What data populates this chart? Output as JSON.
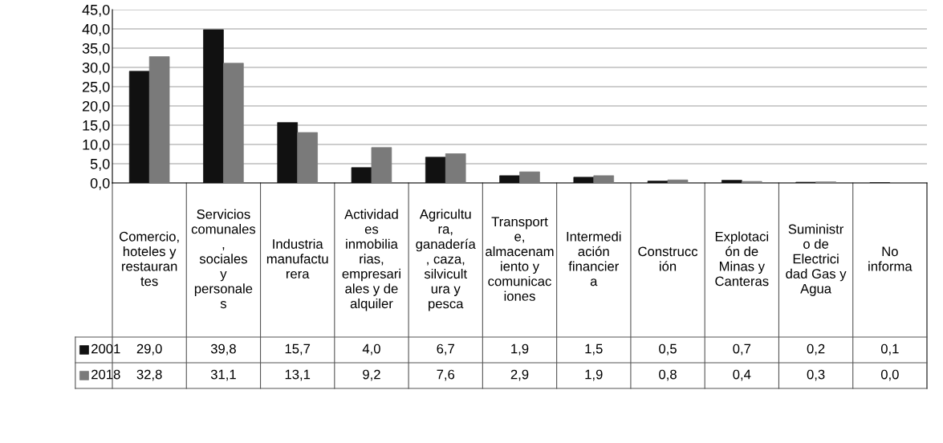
{
  "chart_data": {
    "type": "bar",
    "categories": [
      "Comercio, hoteles y restaurantes",
      "Servicios comunales, sociales y personales",
      "Industria manufacturera",
      "Actividades inmobiliarias, empresariales y de alquiler",
      "Agricultura, ganadería, caza, silvicultura y pesca",
      "Transporte, almacenamiento y comunicaciones",
      "Intermediación financiera",
      "Construcción",
      "Explotación de Minas y Canteras",
      "Suministro de Electricidad Gas y Agua",
      "No informa"
    ],
    "series": [
      {
        "name": "2001",
        "color": "#111111",
        "values": [
          29.0,
          39.8,
          15.7,
          4.0,
          6.7,
          1.9,
          1.5,
          0.5,
          0.7,
          0.2,
          0.1
        ],
        "value_labels": [
          "29,0",
          "39,8",
          "15,7",
          "4,0",
          "6,7",
          "1,9",
          "1,5",
          "0,5",
          "0,7",
          "0,2",
          "0,1"
        ]
      },
      {
        "name": "2018",
        "color": "#7a7a7a",
        "values": [
          32.8,
          31.1,
          13.1,
          9.2,
          7.6,
          2.9,
          1.9,
          0.8,
          0.4,
          0.3,
          0.0
        ],
        "value_labels": [
          "32,8",
          "31,1",
          "13,1",
          "9,2",
          "7,6",
          "2,9",
          "1,9",
          "0,8",
          "0,4",
          "0,3",
          "0,0"
        ]
      }
    ],
    "ylim": [
      0,
      45
    ],
    "yticks": [
      {
        "value": 0,
        "label": "0,0"
      },
      {
        "value": 5,
        "label": "5,0"
      },
      {
        "value": 10,
        "label": "10,0"
      },
      {
        "value": 15,
        "label": "15,0"
      },
      {
        "value": 20,
        "label": "20,0"
      },
      {
        "value": 25,
        "label": "25,0"
      },
      {
        "value": 30,
        "label": "30,0"
      },
      {
        "value": 35,
        "label": "35,0"
      },
      {
        "value": 40,
        "label": "40,0"
      },
      {
        "value": 45,
        "label": "45,0"
      }
    ],
    "grid": "y",
    "legend": "bottom left"
  }
}
